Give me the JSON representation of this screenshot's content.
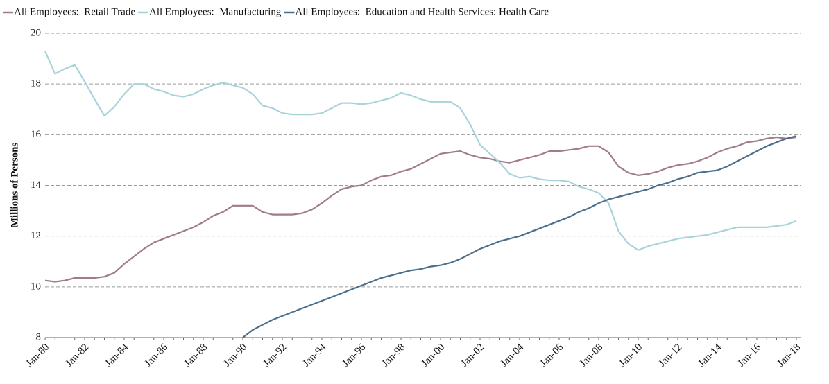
{
  "chart_data": {
    "type": "line",
    "y_label": "Millions of Persons",
    "categories": [
      "Jan-80",
      null,
      null,
      null,
      "Jan-82",
      null,
      null,
      null,
      "Jan-84",
      null,
      null,
      null,
      "Jan-86",
      null,
      null,
      null,
      "Jan-88",
      null,
      null,
      null,
      "Jan-90",
      null,
      null,
      null,
      "Jan-92",
      null,
      null,
      null,
      "Jan-94",
      null,
      null,
      null,
      "Jan-96",
      null,
      null,
      null,
      "Jan-98",
      null,
      null,
      null,
      "Jan-00",
      null,
      null,
      null,
      "Jan-02",
      null,
      null,
      null,
      "Jan-04",
      null,
      null,
      null,
      "Jan-06",
      null,
      null,
      null,
      "Jan-08",
      null,
      null,
      null,
      "Jan-10",
      null,
      null,
      null,
      "Jan-12",
      null,
      null,
      null,
      "Jan-14",
      null,
      null,
      null,
      "Jan-16",
      null,
      null,
      null,
      "Jan-18"
    ],
    "series": [
      {
        "name": "All Employees:  Retail Trade",
        "color": "#a07a8e",
        "values": [
          10.25,
          10.2,
          10.25,
          10.35,
          10.35,
          10.35,
          10.4,
          10.55,
          10.9,
          11.2,
          11.5,
          11.75,
          11.9,
          12.05,
          12.2,
          12.35,
          12.55,
          12.8,
          12.95,
          13.2,
          13.2,
          13.2,
          12.95,
          12.85,
          12.85,
          12.85,
          12.9,
          13.05,
          13.3,
          13.6,
          13.85,
          13.95,
          14.0,
          14.2,
          14.35,
          14.4,
          14.55,
          14.65,
          14.85,
          15.05,
          15.25,
          15.3,
          15.35,
          15.2,
          15.1,
          15.05,
          14.95,
          14.9,
          15.0,
          15.1,
          15.2,
          15.35,
          15.35,
          15.4,
          15.45,
          15.55,
          15.55,
          15.3,
          14.75,
          14.5,
          14.4,
          14.45,
          14.55,
          14.7,
          14.8,
          14.85,
          14.95,
          15.1,
          15.3,
          15.45,
          15.55,
          15.7,
          15.75,
          15.85,
          15.9,
          15.85,
          15.9
        ]
      },
      {
        "name": "All Employees:  Manufacturing",
        "color": "#a9d3db",
        "values": [
          19.3,
          18.4,
          18.6,
          18.75,
          18.1,
          17.4,
          16.75,
          17.1,
          17.6,
          18.0,
          18.0,
          17.8,
          17.7,
          17.55,
          17.5,
          17.6,
          17.8,
          17.95,
          18.05,
          17.95,
          17.85,
          17.6,
          17.15,
          17.05,
          16.85,
          16.8,
          16.8,
          16.8,
          16.85,
          17.05,
          17.25,
          17.25,
          17.2,
          17.25,
          17.35,
          17.45,
          17.65,
          17.55,
          17.4,
          17.3,
          17.3,
          17.3,
          17.05,
          16.4,
          15.6,
          15.25,
          14.9,
          14.45,
          14.3,
          14.35,
          14.25,
          14.2,
          14.2,
          14.15,
          13.95,
          13.85,
          13.7,
          13.3,
          12.2,
          11.7,
          11.45,
          11.6,
          11.7,
          11.8,
          11.9,
          11.95,
          12.0,
          12.05,
          12.15,
          12.25,
          12.35,
          12.35,
          12.35,
          12.35,
          12.4,
          12.45,
          12.6
        ]
      },
      {
        "name": "All Employees:  Education and Health Services: Health Care",
        "color": "#4b6f8a",
        "values": [
          null,
          null,
          null,
          null,
          null,
          null,
          null,
          null,
          null,
          null,
          null,
          null,
          null,
          null,
          null,
          null,
          null,
          null,
          null,
          null,
          8.0,
          8.3,
          8.5,
          8.7,
          8.85,
          9.0,
          9.15,
          9.3,
          9.45,
          9.6,
          9.75,
          9.9,
          10.05,
          10.2,
          10.35,
          10.45,
          10.55,
          10.65,
          10.7,
          10.8,
          10.85,
          10.95,
          11.1,
          11.3,
          11.5,
          11.65,
          11.8,
          11.9,
          12.0,
          12.15,
          12.3,
          12.45,
          12.6,
          12.75,
          12.95,
          13.1,
          13.3,
          13.45,
          13.55,
          13.65,
          13.75,
          13.85,
          14.0,
          14.1,
          14.25,
          14.35,
          14.5,
          14.55,
          14.6,
          14.75,
          14.95,
          15.15,
          15.35,
          15.55,
          15.7,
          15.85,
          15.95
        ]
      }
    ],
    "ylim": [
      8,
      20
    ],
    "yticks": [
      8,
      10,
      12,
      14,
      16,
      18,
      20
    ],
    "grid": true
  }
}
